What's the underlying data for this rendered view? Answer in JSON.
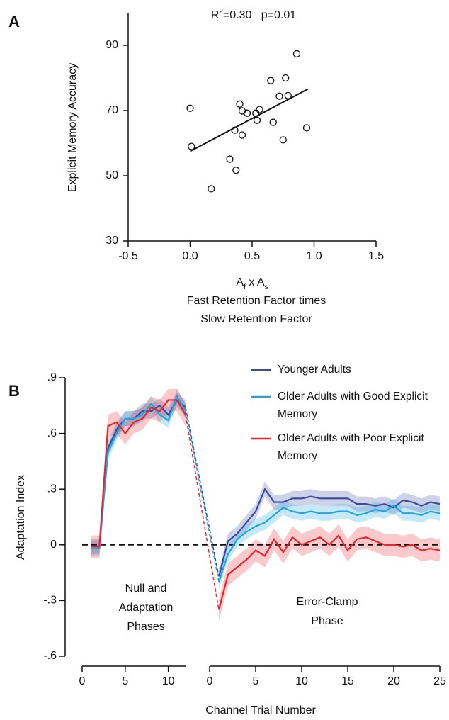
{
  "chart_data": [
    {
      "type": "scatter",
      "panel": "A",
      "annotation": {
        "r": "R",
        "sup": "2",
        "text": "=0.30   p=0.01"
      },
      "xlabel": {
        "a1": "A",
        "s1": "f",
        "mid": " x A",
        "s2": "s",
        "lines": [
          "Fast Retention Factor times",
          "Slow Retention Factor"
        ]
      },
      "ylabel": "Explicit Memory Accuracy",
      "x": [
        0.0,
        0.01,
        0.17,
        0.32,
        0.37,
        0.36,
        0.42,
        0.4,
        0.42,
        0.46,
        0.53,
        0.54,
        0.56,
        0.65,
        0.67,
        0.72,
        0.77,
        0.79,
        0.75,
        0.86,
        0.94
      ],
      "values": [
        70.7,
        59.0,
        46.0,
        55.1,
        51.7,
        64.0,
        62.5,
        72.0,
        69.9,
        69.2,
        69.2,
        67.0,
        70.3,
        79.2,
        66.4,
        74.4,
        80.0,
        74.6,
        61.0,
        87.4,
        64.7
      ],
      "fit": {
        "x": [
          0.0,
          0.95
        ],
        "values": [
          57.5,
          76.6
        ]
      },
      "color": "#111111",
      "xlim": [
        -0.5,
        1.5
      ],
      "xticks": [
        -0.5,
        {
          "value": 0,
          "label": "0.0"
        },
        0.5,
        {
          "value": 1,
          "label": "1.0"
        },
        1.5
      ],
      "ylim": [
        30,
        100
      ],
      "yticks": [
        30,
        50,
        70,
        90
      ]
    },
    {
      "type": "line",
      "panel": "B",
      "xlabel": "Channel Trial Number",
      "ylabel": "Adaptation Index",
      "segments": [
        {
          "x": [
            1,
            2,
            3,
            4,
            5,
            6,
            7,
            8,
            9,
            10,
            11,
            12
          ],
          "xlim": [
            0,
            12
          ],
          "xticks": [
            0,
            5,
            10
          ]
        },
        {
          "x": [
            1,
            2,
            3,
            4,
            5,
            6,
            7,
            8,
            9,
            10,
            11,
            12,
            13,
            14,
            15,
            16,
            17,
            18,
            19,
            20,
            21,
            22,
            23,
            24,
            25
          ],
          "xlim": [
            0,
            25
          ],
          "xticks": [
            0,
            5,
            10,
            15,
            20,
            25
          ]
        }
      ],
      "series": [
        {
          "name": "Younger Adults",
          "color": "#3b4b9e",
          "error": 0.04,
          "values": [
            [
              -0.01,
              -0.01,
              0.52,
              0.62,
              0.68,
              0.68,
              0.72,
              0.72,
              0.75,
              0.7,
              0.78,
              0.74
            ],
            [
              -0.17,
              0.02,
              0.06,
              0.12,
              0.18,
              0.3,
              0.23,
              0.23,
              0.25,
              0.25,
              0.26,
              0.25,
              0.25,
              0.25,
              0.25,
              0.22,
              0.22,
              0.21,
              0.22,
              0.2,
              0.24,
              0.23,
              0.21,
              0.23,
              0.22
            ]
          ]
        },
        {
          "name": "Older Adults with Good Explicit Memory",
          "color": "#1fa6e1",
          "error": 0.04,
          "values": [
            [
              -0.02,
              -0.02,
              0.5,
              0.6,
              0.68,
              0.68,
              0.7,
              0.76,
              0.7,
              0.67,
              0.8,
              0.72
            ],
            [
              -0.2,
              -0.05,
              0.03,
              0.07,
              0.1,
              0.12,
              0.16,
              0.2,
              0.18,
              0.17,
              0.18,
              0.17,
              0.17,
              0.18,
              0.18,
              0.16,
              0.17,
              0.19,
              0.18,
              0.21,
              0.17,
              0.17,
              0.16,
              0.18,
              0.17
            ]
          ]
        },
        {
          "name": "Older Adults with Poor Explicit Memory",
          "color": "#e6262e",
          "error": 0.06,
          "values": [
            [
              -0.01,
              -0.01,
              0.64,
              0.66,
              0.6,
              0.66,
              0.68,
              0.74,
              0.72,
              0.78,
              0.78,
              0.7
            ],
            [
              -0.35,
              -0.16,
              -0.12,
              -0.08,
              -0.03,
              -0.06,
              0.03,
              -0.04,
              0.04,
              0.0,
              0.02,
              0.04,
              0.0,
              0.05,
              -0.03,
              0.03,
              0.04,
              0.02,
              0.0,
              0.0,
              -0.01,
              0.0,
              -0.03,
              -0.02,
              -0.03
            ]
          ]
        }
      ],
      "hline": 0,
      "annotations": [
        [
          "Null and",
          "Adaptation",
          "Phases"
        ],
        [
          "Error-Clamp",
          "Phase"
        ]
      ],
      "ylim": [
        -0.6,
        0.9
      ],
      "yticks": [
        {
          "value": 0.9,
          "label": ".9"
        },
        {
          "value": 0.6,
          "label": ".6"
        },
        {
          "value": 0.3,
          "label": ".3"
        },
        0,
        {
          "value": -0.3,
          "label": "-.3"
        },
        {
          "value": -0.6,
          "label": "-.6"
        }
      ]
    }
  ]
}
